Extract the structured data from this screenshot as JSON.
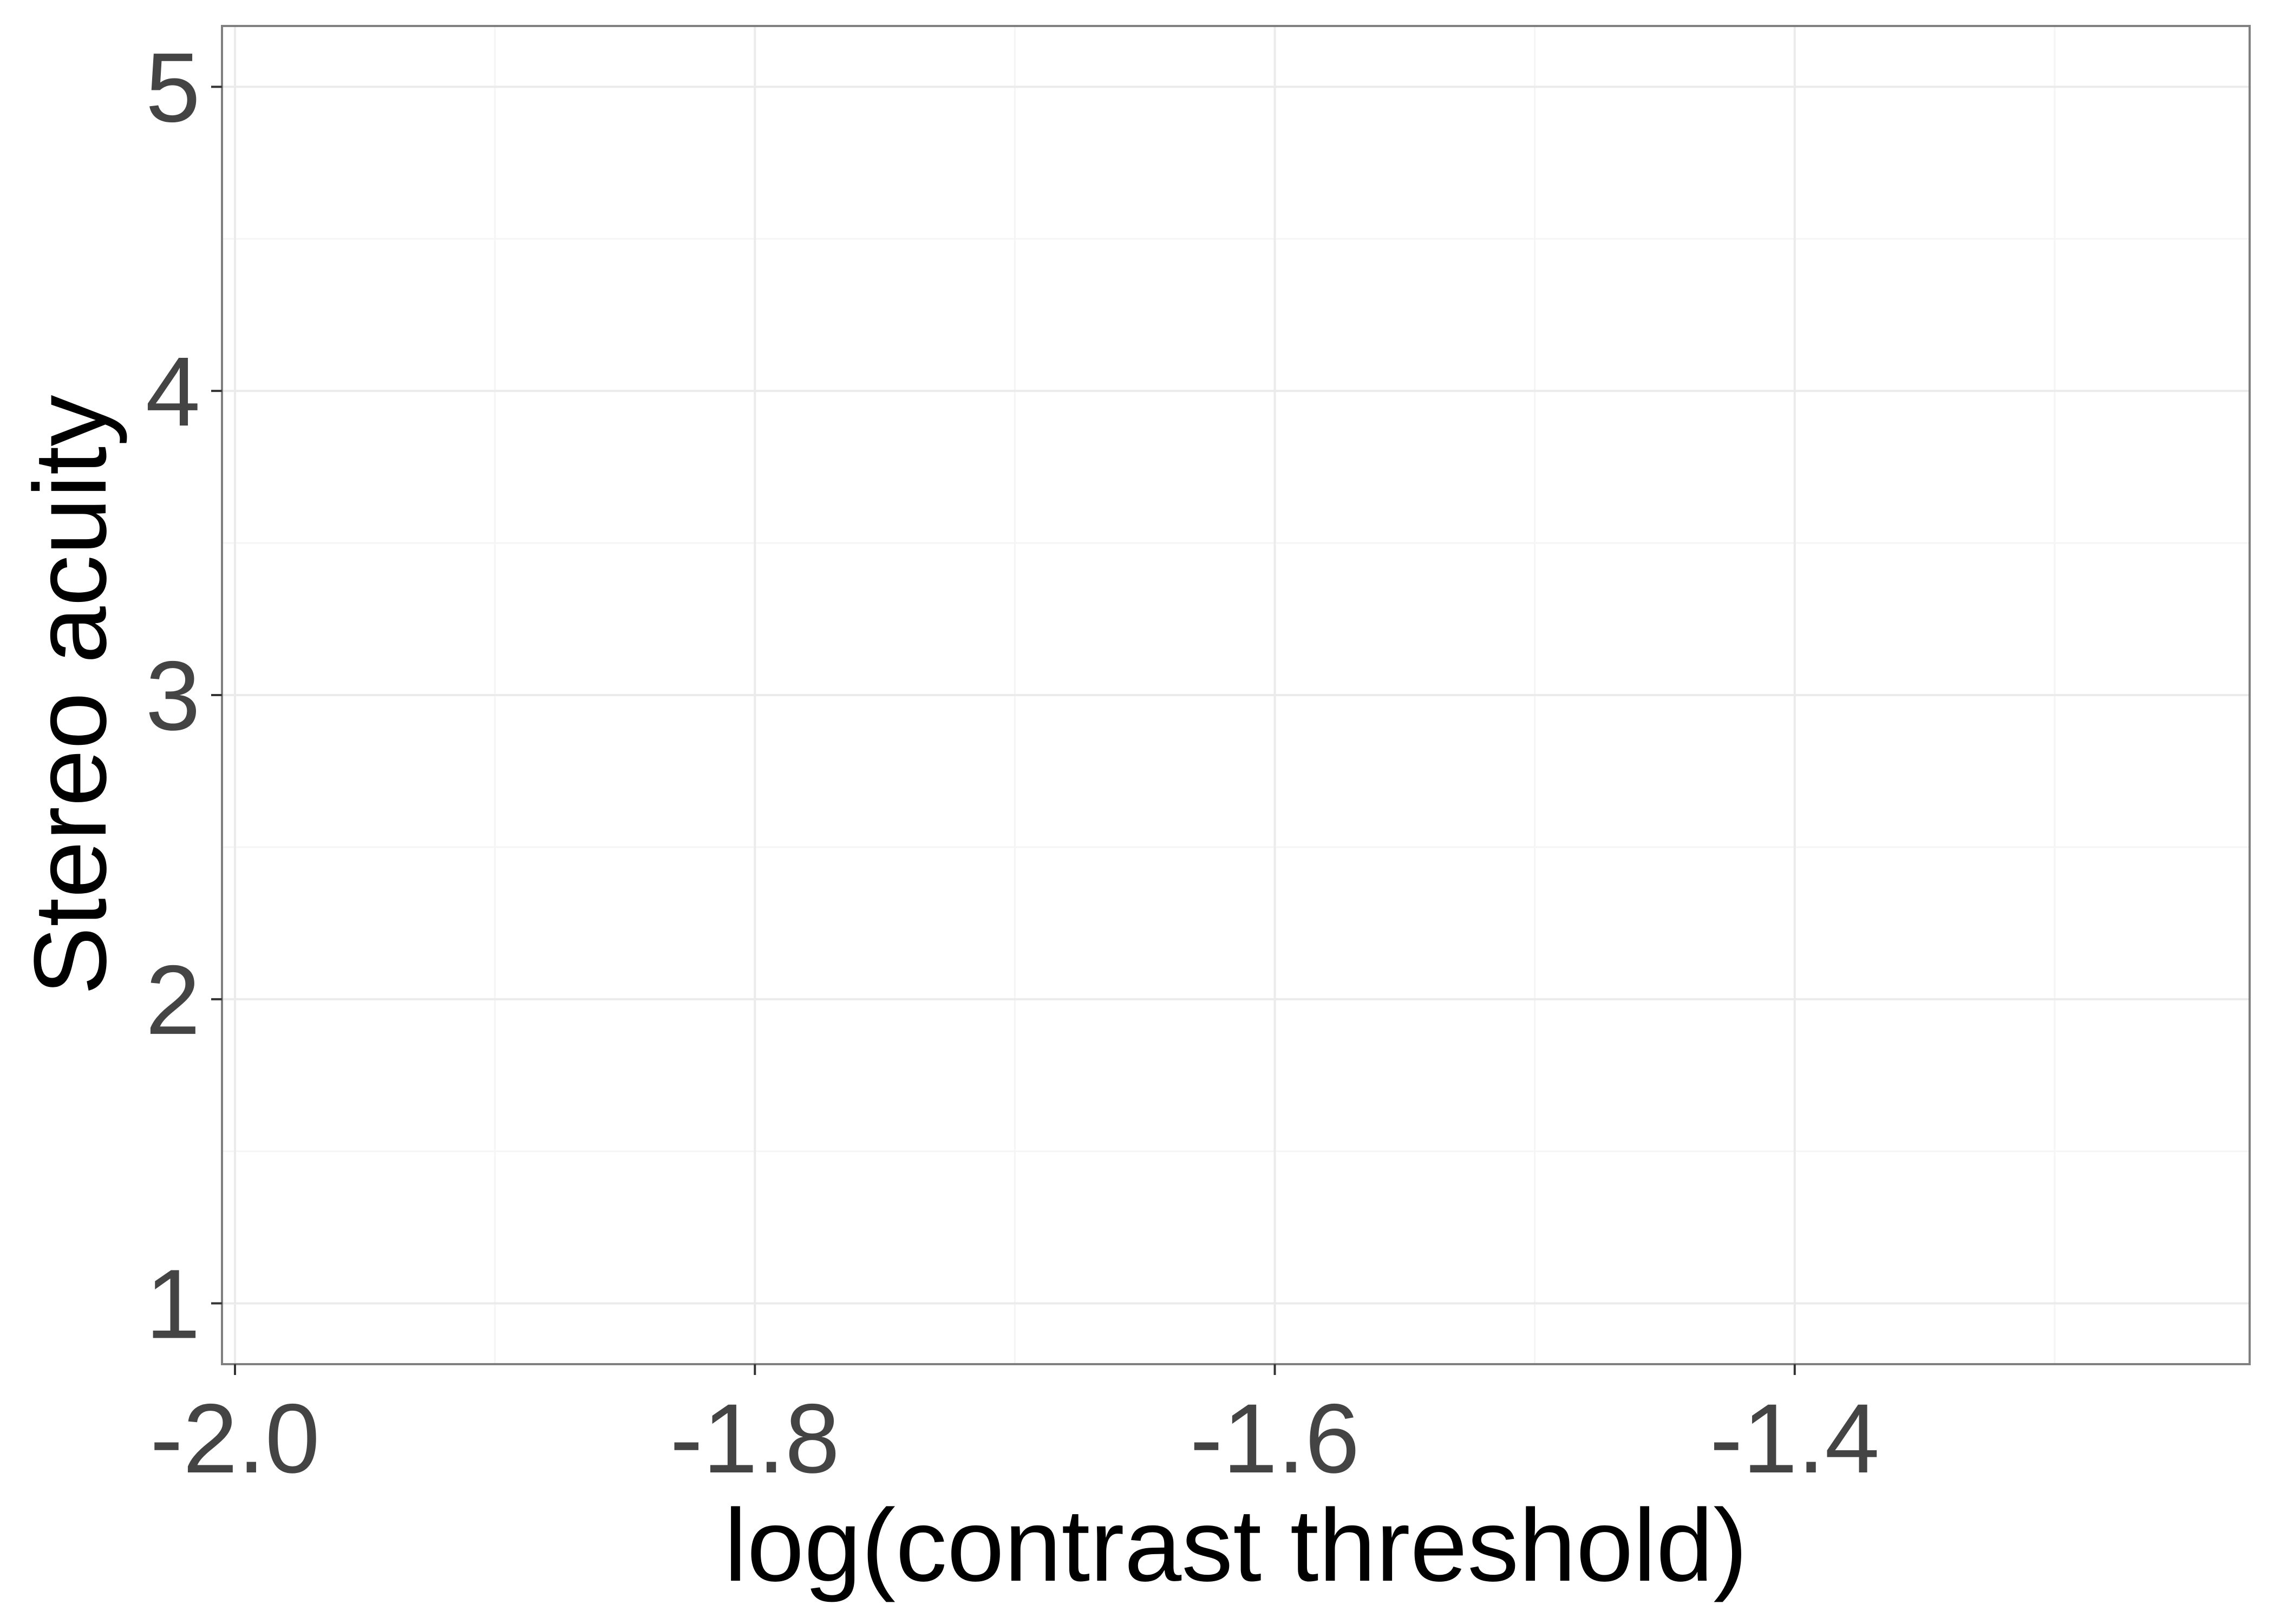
{
  "chart_data": {
    "type": "scatter",
    "title": "",
    "xlabel": "log(contrast threshold)",
    "ylabel": "Stereo acuity",
    "xlim": [
      -2.005,
      -1.225
    ],
    "ylim": [
      0.8,
      5.2
    ],
    "x_ticks": [
      -2.0,
      -1.8,
      -1.6,
      -1.4
    ],
    "x_tick_labels": [
      "-2.0",
      "-1.8",
      "-1.6",
      "-1.4"
    ],
    "x_minor_ticks": [
      -1.9,
      -1.7,
      -1.5,
      -1.3
    ],
    "y_ticks": [
      1,
      2,
      3,
      4,
      5
    ],
    "y_tick_labels": [
      "1",
      "2",
      "3",
      "4",
      "5"
    ],
    "y_minor_ticks": [
      1.5,
      2.5,
      3.5,
      4.5
    ],
    "series": [],
    "grid": true,
    "legend": "none",
    "colors": {
      "panel_border": "#7f7f7f",
      "grid_major": "#ebebeb",
      "grid_minor": "#f5f5f5",
      "tick_text": "#444444",
      "axis_title": "#000000"
    }
  }
}
